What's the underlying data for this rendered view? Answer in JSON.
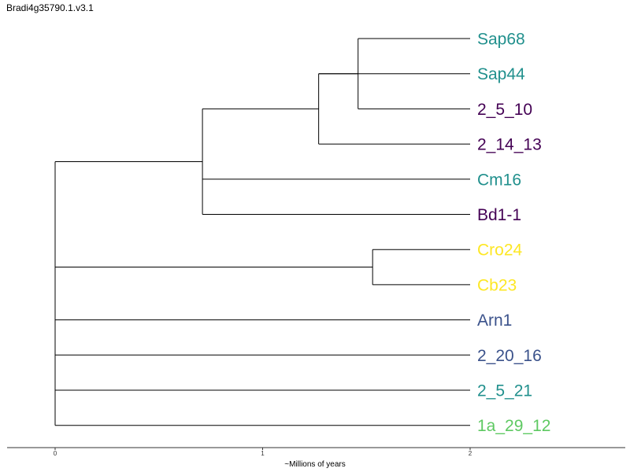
{
  "title": "Bradi4g35790.1.v3.1",
  "chart_data": {
    "type": "dendrogram",
    "xlabel": "~Millions of years",
    "x_ticks": [
      0,
      1,
      2
    ],
    "xlim": [
      -0.23,
      2.75
    ],
    "leaves": [
      {
        "name": "Sap68",
        "color": "#21908d"
      },
      {
        "name": "Sap44",
        "color": "#21908d"
      },
      {
        "name": "2_5_10",
        "color": "#440154"
      },
      {
        "name": "2_14_13",
        "color": "#440154"
      },
      {
        "name": "Cm16",
        "color": "#21908d"
      },
      {
        "name": "Bd1-1",
        "color": "#440154"
      },
      {
        "name": "Cro24",
        "color": "#fde725"
      },
      {
        "name": "Cb23",
        "color": "#fde725"
      },
      {
        "name": "Arn1",
        "color": "#3b528b"
      },
      {
        "name": "2_20_16",
        "color": "#3b528b"
      },
      {
        "name": "2_5_21",
        "color": "#21908d"
      },
      {
        "name": "1a_29_12",
        "color": "#5ec962"
      }
    ],
    "leaf_time": 2.0,
    "nodes": [
      {
        "id": "n1",
        "time": 1.46,
        "children": [
          "Sap68",
          "2_5_10"
        ]
      },
      {
        "id": "n2",
        "time": 1.27,
        "children": [
          "Sap44",
          "n1",
          "2_14_13"
        ]
      },
      {
        "id": "n3",
        "time": 0.71,
        "children": [
          "n2",
          "Cm16",
          "Bd1-1"
        ]
      },
      {
        "id": "n4",
        "time": 1.53,
        "children": [
          "Cro24",
          "Cb23"
        ]
      },
      {
        "id": "root",
        "time": 0.0,
        "children": [
          "n3",
          "n4",
          "Arn1",
          "2_20_16",
          "2_5_21",
          "1a_29_12"
        ]
      }
    ]
  }
}
